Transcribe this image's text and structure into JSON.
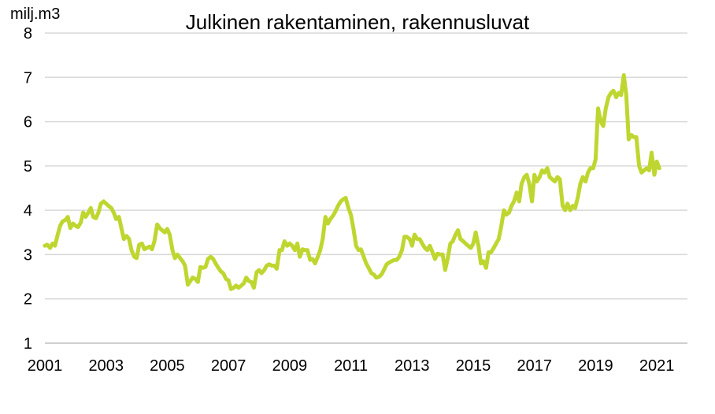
{
  "chart_data": {
    "type": "line",
    "title": "Julkinen rakentaminen, rakennusluvat",
    "unit_label": "milj.m3",
    "xlabel": "",
    "ylabel": "",
    "xlim": [
      2001,
      2022
    ],
    "ylim": [
      1,
      8
    ],
    "y_ticks": [
      "1",
      "2",
      "3",
      "4",
      "5",
      "6",
      "7",
      "8"
    ],
    "x_ticks": [
      "2001",
      "2003",
      "2005",
      "2007",
      "2009",
      "2011",
      "2013",
      "2015",
      "2017",
      "2019",
      "2021"
    ],
    "grid": "horizontal",
    "legend": "none",
    "line_color": "#bfd630",
    "grid_color": "#d9d9d9",
    "series": [
      {
        "x": [
          2001.0,
          2001.08,
          2001.17,
          2001.25,
          2001.33,
          2001.42,
          2001.5,
          2001.58,
          2001.67,
          2001.75,
          2001.83,
          2001.92,
          2002.0,
          2002.08,
          2002.17,
          2002.25,
          2002.33,
          2002.42,
          2002.5,
          2002.58,
          2002.67,
          2002.75,
          2002.83,
          2002.92,
          2003.0,
          2003.08,
          2003.17,
          2003.25,
          2003.33,
          2003.42,
          2003.5,
          2003.58,
          2003.67,
          2003.75,
          2003.83,
          2003.92,
          2004.0,
          2004.08,
          2004.17,
          2004.25,
          2004.33,
          2004.42,
          2004.5,
          2004.58,
          2004.67,
          2004.75,
          2004.83,
          2004.92,
          2005.0,
          2005.08,
          2005.17,
          2005.25,
          2005.33,
          2005.42,
          2005.5,
          2005.58,
          2005.67,
          2005.75,
          2005.83,
          2005.92,
          2006.0,
          2006.08,
          2006.17,
          2006.25,
          2006.33,
          2006.42,
          2006.5,
          2006.58,
          2006.67,
          2006.75,
          2006.83,
          2006.92,
          2007.0,
          2007.08,
          2007.17,
          2007.25,
          2007.33,
          2007.42,
          2007.5,
          2007.58,
          2007.67,
          2007.75,
          2007.83,
          2007.92,
          2008.0,
          2008.08,
          2008.17,
          2008.25,
          2008.33,
          2008.42,
          2008.5,
          2008.58,
          2008.67,
          2008.75,
          2008.83,
          2008.92,
          2009.0,
          2009.08,
          2009.17,
          2009.25,
          2009.33,
          2009.42,
          2009.5,
          2009.58,
          2009.67,
          2009.75,
          2009.83,
          2009.92,
          2010.0,
          2010.08,
          2010.17,
          2010.25,
          2010.33,
          2010.42,
          2010.5,
          2010.58,
          2010.67,
          2010.75,
          2010.83,
          2010.92,
          2011.0,
          2011.08,
          2011.17,
          2011.25,
          2011.33,
          2011.42,
          2011.5,
          2011.58,
          2011.67,
          2011.75,
          2011.83,
          2011.92,
          2012.0,
          2012.08,
          2012.17,
          2012.25,
          2012.33,
          2012.42,
          2012.5,
          2012.58,
          2012.67,
          2012.75,
          2012.83,
          2012.92,
          2013.0,
          2013.08,
          2013.17,
          2013.25,
          2013.33,
          2013.42,
          2013.5,
          2013.58,
          2013.67,
          2013.75,
          2013.83,
          2013.92,
          2014.0,
          2014.08,
          2014.17,
          2014.25,
          2014.33,
          2014.42,
          2014.5,
          2014.58,
          2014.67,
          2014.75,
          2014.83,
          2014.92,
          2015.0,
          2015.08,
          2015.17,
          2015.25,
          2015.33,
          2015.42,
          2015.5,
          2015.58,
          2015.67,
          2015.75,
          2015.83,
          2015.92,
          2016.0,
          2016.08,
          2016.17,
          2016.25,
          2016.33,
          2016.42,
          2016.5,
          2016.58,
          2016.67,
          2016.75,
          2016.83,
          2016.92,
          2017.0,
          2017.08,
          2017.17,
          2017.25,
          2017.33,
          2017.42,
          2017.5,
          2017.58,
          2017.67,
          2017.75,
          2017.83,
          2017.92,
          2018.0,
          2018.08,
          2018.17,
          2018.25,
          2018.33,
          2018.42,
          2018.5,
          2018.58,
          2018.67,
          2018.75,
          2018.83,
          2018.92,
          2019.0,
          2019.08,
          2019.17,
          2019.25,
          2019.33,
          2019.42,
          2019.5,
          2019.58,
          2019.67,
          2019.75,
          2019.83,
          2019.92,
          2020.0,
          2020.08,
          2020.17,
          2020.25,
          2020.33,
          2020.42,
          2020.5,
          2020.58,
          2020.67,
          2020.75,
          2020.83,
          2020.92,
          2021.0,
          2021.08
        ],
        "values": [
          3.2,
          3.22,
          3.15,
          3.25,
          3.2,
          3.45,
          3.65,
          3.75,
          3.78,
          3.85,
          3.6,
          3.7,
          3.65,
          3.62,
          3.72,
          3.95,
          3.85,
          3.95,
          4.05,
          3.85,
          3.82,
          3.95,
          4.15,
          4.2,
          4.15,
          4.1,
          4.05,
          3.95,
          3.8,
          3.85,
          3.6,
          3.35,
          3.42,
          3.35,
          3.1,
          2.95,
          2.92,
          3.22,
          3.25,
          3.12,
          3.15,
          3.18,
          3.12,
          3.3,
          3.68,
          3.6,
          3.55,
          3.5,
          3.58,
          3.45,
          3.1,
          2.92,
          3.0,
          2.92,
          2.85,
          2.75,
          2.32,
          2.4,
          2.48,
          2.45,
          2.38,
          2.72,
          2.7,
          2.72,
          2.9,
          2.95,
          2.9,
          2.8,
          2.7,
          2.62,
          2.58,
          2.45,
          2.42,
          2.22,
          2.25,
          2.3,
          2.25,
          2.3,
          2.35,
          2.48,
          2.4,
          2.38,
          2.25,
          2.6,
          2.65,
          2.58,
          2.65,
          2.75,
          2.78,
          2.75,
          2.75,
          2.68,
          3.1,
          3.1,
          3.3,
          3.2,
          3.25,
          3.2,
          3.1,
          3.25,
          2.95,
          3.12,
          3.1,
          3.1,
          2.88,
          2.9,
          2.8,
          2.95,
          3.1,
          3.35,
          3.85,
          3.7,
          3.8,
          3.88,
          3.98,
          4.1,
          4.2,
          4.25,
          4.28,
          4.05,
          3.9,
          3.6,
          3.2,
          3.1,
          3.12,
          2.95,
          2.8,
          2.7,
          2.58,
          2.55,
          2.48,
          2.5,
          2.55,
          2.65,
          2.78,
          2.82,
          2.85,
          2.88,
          2.88,
          2.95,
          3.1,
          3.4,
          3.4,
          3.35,
          3.2,
          3.45,
          3.35,
          3.35,
          3.25,
          3.15,
          3.1,
          3.2,
          3.05,
          2.9,
          3.02,
          3.0,
          3.0,
          2.65,
          2.92,
          3.25,
          3.3,
          3.45,
          3.55,
          3.35,
          3.3,
          3.25,
          3.2,
          3.15,
          3.25,
          3.5,
          3.2,
          2.8,
          2.85,
          2.7,
          3.05,
          3.05,
          3.15,
          3.25,
          3.35,
          3.65,
          4.0,
          3.9,
          3.95,
          4.1,
          4.2,
          4.4,
          4.2,
          4.6,
          4.75,
          4.8,
          4.6,
          4.2,
          4.8,
          4.65,
          4.75,
          4.9,
          4.85,
          4.95,
          4.75,
          4.7,
          4.65,
          4.75,
          4.7,
          4.1,
          4.0,
          4.15,
          4.0,
          4.1,
          4.05,
          4.3,
          4.6,
          4.75,
          4.65,
          4.85,
          4.95,
          4.95,
          5.15,
          6.3,
          6.0,
          5.9,
          6.3,
          6.55,
          6.65,
          6.7,
          6.55,
          6.65,
          6.6,
          7.05,
          6.6,
          5.6,
          5.7,
          5.65,
          5.65,
          5.0,
          4.85,
          4.9,
          4.95,
          4.9,
          5.3,
          4.8,
          5.1,
          4.95
        ]
      }
    ]
  }
}
